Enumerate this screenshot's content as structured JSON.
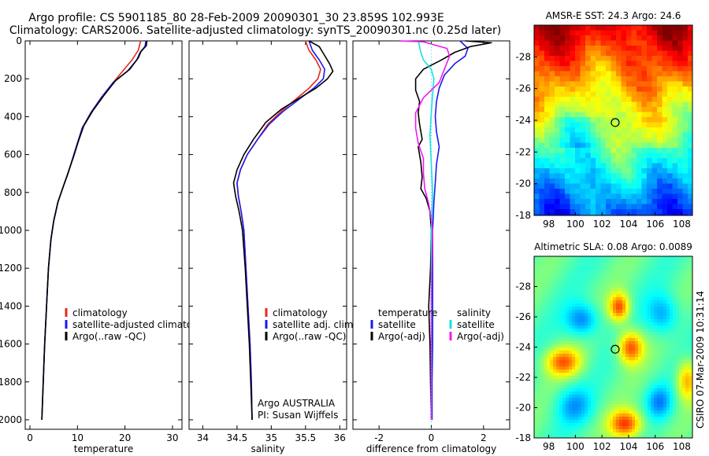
{
  "header": {
    "title_line1": "Argo profile: CS 5901185_80 28-Feb-2009 20090301_30 23.859S 102.993E",
    "title_line2": "Climatology: CARS2006. Satellite-adjusted climatology: synTS_20090301.nc (0.25d later)"
  },
  "side_note": "CSIRO 07-Mar-2009 10:31:14",
  "colors": {
    "climatology": "#e8271c",
    "satellite": "#1a1af0",
    "argo": "#000000",
    "salinity_satellite": "#19e0e0",
    "salinity_argo": "#f01af0"
  },
  "chart_data": [
    {
      "type": "line",
      "id": "temperature",
      "xlabel": "temperature",
      "xlim": [
        -1,
        32
      ],
      "xticks": [
        0,
        10,
        20,
        30
      ],
      "ylim": [
        2050,
        0
      ],
      "yticks": [
        0,
        200,
        400,
        600,
        800,
        1000,
        1200,
        1400,
        1600,
        1800,
        2000
      ],
      "legend": {
        "placement": "lower-right",
        "entries": [
          {
            "name": "climatology",
            "color": "#e8271c"
          },
          {
            "name": "satellite-adjusted climatology",
            "color": "#1a1af0"
          },
          {
            "name": "Argo(..raw -QC)",
            "color": "#000000"
          }
        ]
      },
      "series": [
        {
          "name": "climatology",
          "color": "#e8271c",
          "points": [
            [
              23.3,
              0
            ],
            [
              22.8,
              50
            ],
            [
              21.5,
              100
            ],
            [
              19.5,
              160
            ],
            [
              17.5,
              220
            ],
            [
              15,
              300
            ],
            [
              12.8,
              380
            ],
            [
              11,
              460
            ],
            [
              10,
              540
            ],
            [
              9,
              620
            ],
            [
              8,
              700
            ],
            [
              7,
              770
            ],
            [
              5.9,
              850
            ],
            [
              5,
              950
            ],
            [
              4.4,
              1050
            ],
            [
              3.9,
              1200
            ],
            [
              3.5,
              1400
            ],
            [
              3.1,
              1600
            ],
            [
              2.8,
              1800
            ],
            [
              2.5,
              2000
            ]
          ]
        },
        {
          "name": "satellite-adjusted climatology",
          "color": "#1a1af0",
          "points": [
            [
              24.4,
              0
            ],
            [
              24.2,
              30
            ],
            [
              23.2,
              60
            ],
            [
              22.5,
              100
            ],
            [
              20.5,
              160
            ],
            [
              17.5,
              220
            ],
            [
              15,
              300
            ],
            [
              12.8,
              380
            ],
            [
              11,
              460
            ],
            [
              10,
              540
            ],
            [
              9,
              620
            ],
            [
              8,
              700
            ],
            [
              7,
              770
            ],
            [
              5.9,
              850
            ],
            [
              5,
              950
            ],
            [
              4.4,
              1050
            ],
            [
              3.9,
              1200
            ],
            [
              3.5,
              1400
            ],
            [
              3.1,
              1600
            ],
            [
              2.8,
              1800
            ],
            [
              2.5,
              2000
            ]
          ]
        },
        {
          "name": "Argo(..raw -QC)",
          "color": "#000000",
          "points": [
            [
              24.6,
              0
            ],
            [
              24.5,
              25
            ],
            [
              23.4,
              55
            ],
            [
              22.8,
              90
            ],
            [
              21,
              150
            ],
            [
              18,
              210
            ],
            [
              15.5,
              290
            ],
            [
              13.2,
              370
            ],
            [
              11.3,
              450
            ],
            [
              10.2,
              530
            ],
            [
              9.2,
              610
            ],
            [
              8.1,
              690
            ],
            [
              7,
              770
            ],
            [
              5.9,
              850
            ],
            [
              5,
              950
            ],
            [
              4.4,
              1050
            ],
            [
              3.9,
              1200
            ],
            [
              3.5,
              1400
            ],
            [
              3.1,
              1600
            ],
            [
              2.8,
              1800
            ],
            [
              2.5,
              2000
            ]
          ]
        }
      ]
    },
    {
      "type": "line",
      "id": "salinity",
      "xlabel": "salinity",
      "xlim": [
        33.8,
        36.1
      ],
      "xticks": [
        34,
        34.5,
        35,
        35.5,
        36
      ],
      "ylim": [
        2050,
        0
      ],
      "legend": {
        "placement": "lower-right",
        "entries": [
          {
            "name": "climatology",
            "color": "#e8271c"
          },
          {
            "name": "satellite adj. clim.",
            "color": "#1a1af0"
          },
          {
            "name": "Argo(..raw -QC)",
            "color": "#000000"
          }
        ]
      },
      "annotation": [
        "Argo AUSTRALIA",
        "PI: Susan Wijffels"
      ],
      "series": [
        {
          "name": "climatology",
          "color": "#e8271c",
          "points": [
            [
              35.5,
              0
            ],
            [
              35.55,
              50
            ],
            [
              35.65,
              100
            ],
            [
              35.72,
              150
            ],
            [
              35.68,
              200
            ],
            [
              35.55,
              250
            ],
            [
              35.35,
              310
            ],
            [
              35.15,
              370
            ],
            [
              34.95,
              440
            ],
            [
              34.8,
              520
            ],
            [
              34.65,
              600
            ],
            [
              34.55,
              680
            ],
            [
              34.5,
              750
            ],
            [
              34.52,
              820
            ],
            [
              34.56,
              900
            ],
            [
              34.6,
              1000
            ],
            [
              34.63,
              1200
            ],
            [
              34.66,
              1400
            ],
            [
              34.69,
              1600
            ],
            [
              34.71,
              1800
            ],
            [
              34.72,
              2000
            ]
          ]
        },
        {
          "name": "satellite adj. clim.",
          "color": "#1a1af0",
          "points": [
            [
              35.55,
              0
            ],
            [
              35.6,
              50
            ],
            [
              35.7,
              100
            ],
            [
              35.78,
              150
            ],
            [
              35.76,
              200
            ],
            [
              35.62,
              250
            ],
            [
              35.4,
              310
            ],
            [
              35.18,
              370
            ],
            [
              34.97,
              440
            ],
            [
              34.8,
              520
            ],
            [
              34.65,
              600
            ],
            [
              34.55,
              680
            ],
            [
              34.5,
              750
            ],
            [
              34.52,
              820
            ],
            [
              34.56,
              900
            ],
            [
              34.6,
              1000
            ],
            [
              34.63,
              1200
            ],
            [
              34.66,
              1400
            ],
            [
              34.69,
              1600
            ],
            [
              34.71,
              1800
            ],
            [
              34.72,
              2000
            ]
          ]
        },
        {
          "name": "Argo(..raw -QC)",
          "color": "#000000",
          "points": [
            [
              35.55,
              0
            ],
            [
              35.7,
              30
            ],
            [
              35.75,
              60
            ],
            [
              35.85,
              120
            ],
            [
              35.9,
              160
            ],
            [
              35.82,
              200
            ],
            [
              35.65,
              250
            ],
            [
              35.42,
              300
            ],
            [
              35.15,
              360
            ],
            [
              34.92,
              430
            ],
            [
              34.74,
              520
            ],
            [
              34.6,
              600
            ],
            [
              34.5,
              680
            ],
            [
              34.45,
              750
            ],
            [
              34.48,
              820
            ],
            [
              34.53,
              900
            ],
            [
              34.58,
              1000
            ],
            [
              34.62,
              1200
            ],
            [
              34.65,
              1400
            ],
            [
              34.68,
              1600
            ],
            [
              34.7,
              1800
            ],
            [
              34.72,
              2000
            ]
          ]
        }
      ]
    },
    {
      "type": "line",
      "id": "difference",
      "xlabel": "difference from climatology",
      "xlim": [
        -3,
        3
      ],
      "xticks": [
        -2,
        0,
        2
      ],
      "ylim": [
        2050,
        0
      ],
      "legend": {
        "placement": "lower-center",
        "entries": [
          {
            "name": "temperature",
            "color": null
          },
          {
            "name": "satellite",
            "color": "#1a1af0"
          },
          {
            "name": "Argo(-adj)",
            "color": "#000000"
          },
          {
            "name": "salinity",
            "color": null
          },
          {
            "name": "satellite",
            "color": "#19e0e0"
          },
          {
            "name": "Argo(-adj)",
            "color": "#f01af0"
          }
        ]
      },
      "series": [
        {
          "name": "temperature satellite",
          "color": "#1a1af0",
          "points": [
            [
              1.1,
              0
            ],
            [
              1.4,
              40
            ],
            [
              1.3,
              80
            ],
            [
              0.9,
              120
            ],
            [
              0.5,
              180
            ],
            [
              0.3,
              250
            ],
            [
              0.2,
              320
            ],
            [
              0.15,
              400
            ],
            [
              0.2,
              480
            ],
            [
              0.3,
              560
            ],
            [
              0.2,
              650
            ],
            [
              0.15,
              750
            ],
            [
              0.1,
              850
            ],
            [
              0.05,
              1000
            ],
            [
              0.05,
              1200
            ],
            [
              0.05,
              1400
            ],
            [
              0.05,
              1600
            ],
            [
              0.03,
              1800
            ],
            [
              0.03,
              2000
            ]
          ]
        },
        {
          "name": "temperature Argo(-adj)",
          "color": "#000000",
          "points": [
            [
              1.3,
              0
            ],
            [
              2.3,
              10
            ],
            [
              1.5,
              30
            ],
            [
              0.9,
              60
            ],
            [
              0.4,
              100
            ],
            [
              -0.3,
              150
            ],
            [
              -0.6,
              200
            ],
            [
              -0.6,
              260
            ],
            [
              -0.45,
              320
            ],
            [
              -0.5,
              380
            ],
            [
              -0.45,
              440
            ],
            [
              -0.35,
              520
            ],
            [
              -0.5,
              560
            ],
            [
              -0.4,
              640
            ],
            [
              -0.35,
              720
            ],
            [
              -0.4,
              780
            ],
            [
              -0.2,
              830
            ],
            [
              -0.05,
              900
            ],
            [
              0,
              1000
            ],
            [
              -0.03,
              1200
            ],
            [
              -0.1,
              1400
            ],
            [
              -0.05,
              1600
            ],
            [
              -0.03,
              1800
            ],
            [
              0,
              2000
            ]
          ]
        },
        {
          "name": "salinity satellite",
          "color": "#19e0e0",
          "points": [
            [
              -0.5,
              0
            ],
            [
              -0.4,
              60
            ],
            [
              -0.3,
              100
            ],
            [
              0,
              150
            ],
            [
              0.1,
              200
            ],
            [
              0.05,
              280
            ],
            [
              0,
              380
            ],
            [
              -0.05,
              500
            ],
            [
              0,
              650
            ],
            [
              0.05,
              800
            ],
            [
              0,
              1000
            ],
            [
              0,
              1200
            ],
            [
              0,
              1400
            ],
            [
              0,
              1600
            ],
            [
              0,
              1800
            ],
            [
              0,
              2000
            ]
          ]
        },
        {
          "name": "salinity Argo(-adj)",
          "color": "#f01af0",
          "points": [
            [
              -1.2,
              0
            ],
            [
              -0.3,
              5
            ],
            [
              0.6,
              40
            ],
            [
              0.7,
              80
            ],
            [
              0.5,
              150
            ],
            [
              0.3,
              220
            ],
            [
              -0.3,
              300
            ],
            [
              -0.6,
              380
            ],
            [
              -0.6,
              460
            ],
            [
              -0.5,
              540
            ],
            [
              -0.3,
              620
            ],
            [
              -0.3,
              700
            ],
            [
              -0.25,
              780
            ],
            [
              -0.1,
              860
            ],
            [
              0,
              940
            ],
            [
              0.05,
              1000
            ],
            [
              0.02,
              1200
            ],
            [
              0,
              1400
            ],
            [
              0,
              1600
            ],
            [
              0,
              1800
            ],
            [
              0,
              2000
            ]
          ]
        }
      ]
    },
    {
      "type": "heatmap",
      "id": "amsr",
      "title": "AMSR-E SST: 24.3 Argo: 24.6",
      "xlim": [
        96.9,
        108.8
      ],
      "xticks": [
        98,
        100,
        102,
        104,
        106,
        108
      ],
      "ylim": [
        -18,
        -30
      ],
      "yticks": [
        -18,
        -20,
        -22,
        -24,
        -26,
        -28
      ],
      "marker": {
        "lon": 102.993,
        "lat": -23.859
      }
    },
    {
      "type": "heatmap",
      "id": "sla",
      "title": "Altimetric SLA: 0.08 Argo: 0.0089",
      "xlim": [
        96.9,
        108.8
      ],
      "xticks": [
        98,
        100,
        102,
        104,
        106,
        108
      ],
      "ylim": [
        -18,
        -30
      ],
      "yticks": [
        -18,
        -20,
        -22,
        -24,
        -26,
        -28
      ],
      "marker": {
        "lon": 102.993,
        "lat": -23.859
      }
    }
  ]
}
